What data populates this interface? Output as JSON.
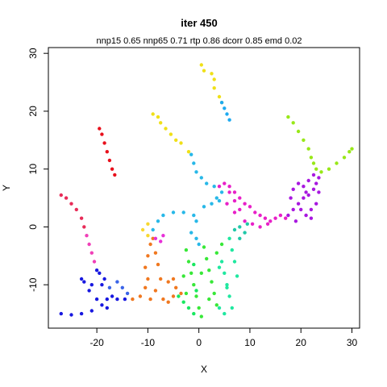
{
  "chart_data": {
    "type": "scatter",
    "title": "iter 450",
    "subtitle": "nnp15 0.65 nnp65 0.71 rtp 0.86 dcorr 0.85 emd 0.02",
    "xlabel": "X",
    "ylabel": "Y",
    "xlim": [
      -29.5,
      31.5
    ],
    "ylim": [
      -17.5,
      31
    ],
    "x_ticks": [
      -20,
      -10,
      0,
      10,
      20,
      30
    ],
    "y_ticks": [
      -10,
      0,
      10,
      20,
      30
    ],
    "grid": false,
    "legend": "none",
    "series": [
      {
        "color": "#e8101c",
        "points": [
          [
            -19.5,
            17.0
          ],
          [
            -19.0,
            16.0
          ],
          [
            -18.5,
            14.5
          ],
          [
            -18.0,
            13.0
          ],
          [
            -17.5,
            11.5
          ],
          [
            -17.0,
            10.0
          ],
          [
            -16.5,
            9.0
          ]
        ]
      },
      {
        "color": "#f0e018",
        "points": [
          [
            -9.0,
            19.5
          ],
          [
            -8.0,
            19.0
          ],
          [
            -7.5,
            18.0
          ],
          [
            -6.5,
            17.0
          ],
          [
            -5.5,
            16.0
          ],
          [
            -4.5,
            15.0
          ],
          [
            -3.5,
            14.5
          ],
          [
            -2.0,
            13.0
          ]
        ]
      },
      {
        "color": "#f0e018",
        "points": [
          [
            0.5,
            28.0
          ],
          [
            1.0,
            27.0
          ],
          [
            2.5,
            26.5
          ],
          [
            3.0,
            25.5
          ],
          [
            3.0,
            24.0
          ],
          [
            4.0,
            22.5
          ],
          [
            4.5,
            21.5
          ]
        ]
      },
      {
        "color": "#1eaaf0",
        "points": [
          [
            4.5,
            21.5
          ],
          [
            5.0,
            20.5
          ],
          [
            5.5,
            19.5
          ],
          [
            6.0,
            18.5
          ]
        ]
      },
      {
        "color": "#e82c58",
        "points": [
          [
            -27.0,
            5.5
          ],
          [
            -26.0,
            5.0
          ],
          [
            -25.0,
            4.0
          ],
          [
            -24.0,
            3.0
          ],
          [
            -23.0,
            1.5
          ],
          [
            -22.5,
            0.0
          ]
        ]
      },
      {
        "color": "#f040b8",
        "points": [
          [
            -22.0,
            -1.5
          ],
          [
            -21.5,
            -3.0
          ],
          [
            -21.0,
            -4.5
          ],
          [
            -20.5,
            -6.0
          ]
        ]
      },
      {
        "color": "#1818e0",
        "points": [
          [
            -20.0,
            -7.5
          ],
          [
            -19.5,
            -8.0
          ],
          [
            -18.5,
            -9.0
          ],
          [
            -19.0,
            -10.0
          ],
          [
            -21.0,
            -10.0
          ],
          [
            -22.5,
            -9.5
          ],
          [
            -23.0,
            -9.0
          ],
          [
            -21.5,
            -11.0
          ],
          [
            -20.0,
            -12.5
          ],
          [
            -19.0,
            -13.5
          ],
          [
            -18.0,
            -12.5
          ],
          [
            -17.0,
            -12.0
          ],
          [
            -16.0,
            -12.5
          ],
          [
            -14.5,
            -12.5
          ],
          [
            -21.0,
            -14.5
          ],
          [
            -23.0,
            -15.0
          ],
          [
            -25.0,
            -15.2
          ],
          [
            -27.0,
            -15.0
          ],
          [
            -18.0,
            -14.0
          ]
        ]
      },
      {
        "color": "#3a64e8",
        "points": [
          [
            -17.5,
            -10.5
          ],
          [
            -16.0,
            -9.5
          ],
          [
            -15.0,
            -10.5
          ],
          [
            -14.0,
            -11.5
          ]
        ]
      },
      {
        "color": "#f07820",
        "points": [
          [
            -13.0,
            -12.5
          ],
          [
            -11.5,
            -12.0
          ],
          [
            -10.5,
            -10.5
          ],
          [
            -10.0,
            -9.0
          ],
          [
            -10.5,
            -7.0
          ],
          [
            -10.0,
            -5.0
          ],
          [
            -9.5,
            -3.0
          ],
          [
            -9.0,
            -2.0
          ],
          [
            -8.5,
            -4.5
          ],
          [
            -8.0,
            -6.5
          ],
          [
            -7.5,
            -9.0
          ],
          [
            -8.5,
            -11.0
          ],
          [
            -7.0,
            -12.5
          ],
          [
            -6.0,
            -13.0
          ],
          [
            -5.0,
            -12.0
          ],
          [
            -4.5,
            -10.5
          ],
          [
            -5.0,
            -9.0
          ],
          [
            -6.0,
            -9.5
          ],
          [
            -3.5,
            -11.5
          ],
          [
            -9.5,
            -12.5
          ]
        ]
      },
      {
        "color": "#f8d830",
        "points": [
          [
            -10.0,
            -1.5
          ],
          [
            -11.0,
            -0.5
          ],
          [
            -10.0,
            0.5
          ]
        ]
      },
      {
        "color": "#28b8e8",
        "points": [
          [
            -9.0,
            -0.5
          ],
          [
            -8.0,
            1.0
          ],
          [
            -7.0,
            2.0
          ],
          [
            -5.0,
            2.5
          ],
          [
            -3.0,
            2.5
          ],
          [
            -1.0,
            2.0
          ],
          [
            -0.5,
            1.0
          ],
          [
            -1.5,
            -1.0
          ],
          [
            -0.5,
            -2.0
          ],
          [
            0.0,
            -3.0
          ],
          [
            1.0,
            3.5
          ],
          [
            2.5,
            4.0
          ],
          [
            3.5,
            5.0
          ],
          [
            4.5,
            6.0
          ],
          [
            3.0,
            7.0
          ],
          [
            1.5,
            7.5
          ],
          [
            0.5,
            8.5
          ],
          [
            -0.5,
            9.5
          ],
          [
            -1.0,
            11.0
          ],
          [
            -1.5,
            12.5
          ],
          [
            4.0,
            4.5
          ]
        ]
      },
      {
        "color": "#e830d8",
        "points": [
          [
            -8.5,
            -2.0
          ],
          [
            -7.5,
            -2.5
          ],
          [
            -7.0,
            -1.5
          ]
        ]
      },
      {
        "color": "#38e838",
        "points": [
          [
            -2.5,
            -4.0
          ],
          [
            -2.0,
            -6.0
          ],
          [
            -1.5,
            -8.0
          ],
          [
            -1.0,
            -10.0
          ],
          [
            -0.5,
            -12.0
          ],
          [
            0.0,
            -14.0
          ],
          [
            0.5,
            -15.5
          ],
          [
            1.0,
            -3.5
          ],
          [
            1.5,
            -5.5
          ],
          [
            2.0,
            -7.5
          ],
          [
            2.5,
            -9.5
          ],
          [
            3.0,
            -11.5
          ],
          [
            3.5,
            -13.5
          ],
          [
            -3.0,
            -8.5
          ],
          [
            -2.5,
            -11.5
          ],
          [
            0.5,
            -8.0
          ],
          [
            2.0,
            -12.5
          ],
          [
            3.5,
            -4.5
          ],
          [
            4.5,
            -3.0
          ]
        ]
      },
      {
        "color": "#20e8a0",
        "points": [
          [
            4.5,
            -6.0
          ],
          [
            5.0,
            -8.0
          ],
          [
            5.5,
            -10.0
          ],
          [
            6.0,
            -12.0
          ],
          [
            6.5,
            -14.0
          ],
          [
            5.0,
            -15.0
          ],
          [
            4.0,
            -14.0
          ],
          [
            6.5,
            -4.0
          ],
          [
            7.0,
            -6.0
          ],
          [
            7.5,
            -8.5
          ],
          [
            6.0,
            -2.0
          ],
          [
            5.5,
            -10.5
          ],
          [
            4.0,
            -7.0
          ]
        ]
      },
      {
        "color": "#18e860",
        "points": [
          [
            -4.0,
            -12.0
          ],
          [
            -3.0,
            -13.0
          ],
          [
            -2.0,
            -14.0
          ],
          [
            -1.0,
            -15.0
          ],
          [
            -0.5,
            -11.0
          ],
          [
            -1.0,
            -6.5
          ]
        ]
      },
      {
        "color": "#20c8a8",
        "points": [
          [
            7.0,
            -0.5
          ],
          [
            8.0,
            0.0
          ],
          [
            9.0,
            -1.0
          ],
          [
            8.0,
            -2.0
          ],
          [
            9.5,
            0.5
          ]
        ]
      },
      {
        "color": "#e820c8",
        "points": [
          [
            4.0,
            7.0
          ],
          [
            5.0,
            7.5
          ],
          [
            6.0,
            7.0
          ],
          [
            7.0,
            6.0
          ],
          [
            8.0,
            5.0
          ],
          [
            9.0,
            4.0
          ],
          [
            10.0,
            3.5
          ],
          [
            11.0,
            2.5
          ],
          [
            12.0,
            2.0
          ],
          [
            13.0,
            1.5
          ],
          [
            14.0,
            1.0
          ],
          [
            15.0,
            1.5
          ],
          [
            16.0,
            2.0
          ],
          [
            17.0,
            1.5
          ],
          [
            9.0,
            1.0
          ],
          [
            10.5,
            0.5
          ],
          [
            12.0,
            0.0
          ],
          [
            13.5,
            0.5
          ],
          [
            8.0,
            3.0
          ],
          [
            7.0,
            4.5
          ],
          [
            6.0,
            6.0
          ],
          [
            5.5,
            4.0
          ],
          [
            7.0,
            2.5
          ]
        ]
      },
      {
        "color": "#a818e0",
        "points": [
          [
            17.5,
            2.0
          ],
          [
            18.5,
            3.0
          ],
          [
            19.5,
            4.0
          ],
          [
            20.5,
            5.0
          ],
          [
            21.5,
            5.5
          ],
          [
            22.5,
            6.5
          ],
          [
            23.0,
            7.5
          ],
          [
            23.5,
            8.5
          ],
          [
            22.5,
            9.0
          ],
          [
            21.5,
            8.0
          ],
          [
            20.5,
            7.0
          ],
          [
            19.5,
            7.5
          ],
          [
            18.5,
            6.5
          ],
          [
            18.0,
            5.0
          ],
          [
            20.0,
            3.0
          ],
          [
            21.0,
            2.0
          ],
          [
            22.0,
            3.0
          ],
          [
            23.0,
            4.0
          ],
          [
            23.5,
            6.0
          ],
          [
            22.0,
            1.5
          ],
          [
            19.0,
            1.0
          ],
          [
            21.0,
            6.0
          ]
        ]
      },
      {
        "color": "#98e818",
        "points": [
          [
            17.5,
            19.0
          ],
          [
            18.5,
            18.0
          ],
          [
            19.5,
            16.5
          ],
          [
            20.5,
            15.0
          ],
          [
            21.5,
            13.5
          ],
          [
            22.0,
            12.0
          ],
          [
            22.5,
            11.0
          ],
          [
            23.0,
            10.0
          ],
          [
            24.0,
            9.5
          ],
          [
            25.5,
            10.0
          ],
          [
            27.0,
            11.0
          ],
          [
            28.5,
            12.0
          ],
          [
            29.5,
            13.0
          ],
          [
            30.0,
            13.5
          ]
        ]
      }
    ]
  }
}
